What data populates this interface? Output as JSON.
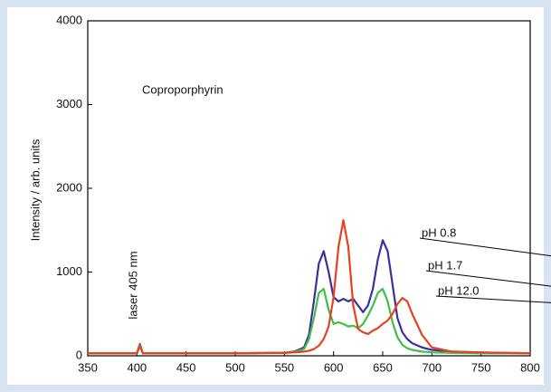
{
  "chart_data": {
    "type": "line",
    "ylabel": "Intensity / arb. units",
    "xlim": [
      350,
      800
    ],
    "ylim": [
      0,
      4000
    ],
    "xticks": [
      350,
      400,
      450,
      500,
      550,
      600,
      650,
      700,
      750,
      800
    ],
    "yticks": [
      0,
      1000,
      2000,
      3000,
      4000
    ],
    "grid": false,
    "x": [
      350,
      400,
      403,
      406,
      450,
      500,
      550,
      560,
      570,
      575,
      580,
      585,
      590,
      595,
      600,
      605,
      610,
      615,
      620,
      625,
      630,
      635,
      640,
      645,
      650,
      655,
      660,
      665,
      670,
      675,
      680,
      690,
      700,
      720,
      750,
      800
    ],
    "series": [
      {
        "name": "pH 0.8",
        "color": "#3b2f9e",
        "values": [
          30,
          30,
          140,
          30,
          30,
          30,
          35,
          50,
          100,
          250,
          650,
          1100,
          1250,
          1000,
          700,
          650,
          680,
          650,
          680,
          600,
          520,
          600,
          800,
          1150,
          1380,
          1250,
          850,
          450,
          280,
          200,
          150,
          100,
          70,
          50,
          40,
          30
        ]
      },
      {
        "name": "pH 1.7",
        "color": "#3fbf48",
        "values": [
          30,
          30,
          130,
          30,
          30,
          30,
          35,
          45,
          80,
          200,
          450,
          750,
          800,
          550,
          380,
          400,
          380,
          350,
          360,
          330,
          380,
          480,
          600,
          750,
          800,
          650,
          400,
          220,
          130,
          90,
          70,
          50,
          40,
          35,
          30,
          30
        ]
      },
      {
        "name": "pH 12.0",
        "color": "#e8411d",
        "values": [
          30,
          30,
          120,
          30,
          30,
          30,
          35,
          40,
          50,
          60,
          80,
          120,
          200,
          350,
          700,
          1300,
          1620,
          1300,
          600,
          320,
          280,
          260,
          300,
          330,
          380,
          420,
          500,
          620,
          690,
          650,
          500,
          250,
          100,
          50,
          40,
          30
        ]
      }
    ],
    "annotations": [
      "Coproporphyrin",
      "laser 405 nm"
    ]
  }
}
